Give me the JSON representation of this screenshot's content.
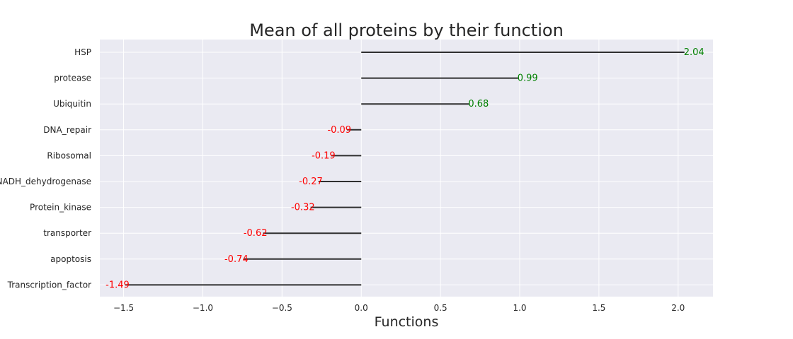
{
  "chart_data": {
    "type": "bar",
    "orientation": "horizontal",
    "style": "lollipop-lines",
    "title": "Mean of all proteins by their function",
    "xlabel": "Functions",
    "ylabel": "",
    "xlim": [
      -1.65,
      2.22
    ],
    "x_ticks": [
      -1.5,
      -1.0,
      -0.5,
      0.0,
      0.5,
      1.0,
      1.5,
      2.0
    ],
    "x_tick_labels": [
      "−1.5",
      "−1.0",
      "−0.5",
      "0.0",
      "0.5",
      "1.0",
      "1.5",
      "2.0"
    ],
    "grid": true,
    "categories": [
      "HSP",
      "protease",
      "Ubiquitin",
      "DNA_repair",
      "Ribosomal",
      "NADH_dehydrogenase",
      "Protein_kinase",
      "transporter",
      "apoptosis",
      "Transcription_factor"
    ],
    "values": [
      2.04,
      0.99,
      0.68,
      -0.09,
      -0.19,
      -0.27,
      -0.32,
      -0.62,
      -0.74,
      -1.49
    ],
    "value_labels": [
      "2.04",
      "0.99",
      "0.68",
      "-0.09",
      "-0.19",
      "-0.27",
      "-0.32",
      "-0.62",
      "-0.74",
      "-1.49"
    ],
    "colors": {
      "background": "#eaeaf2",
      "grid": "#ffffff",
      "line": "#2f2f2f",
      "positive_label": "#008000",
      "negative_label": "#ff0000",
      "text": "#262626"
    }
  }
}
